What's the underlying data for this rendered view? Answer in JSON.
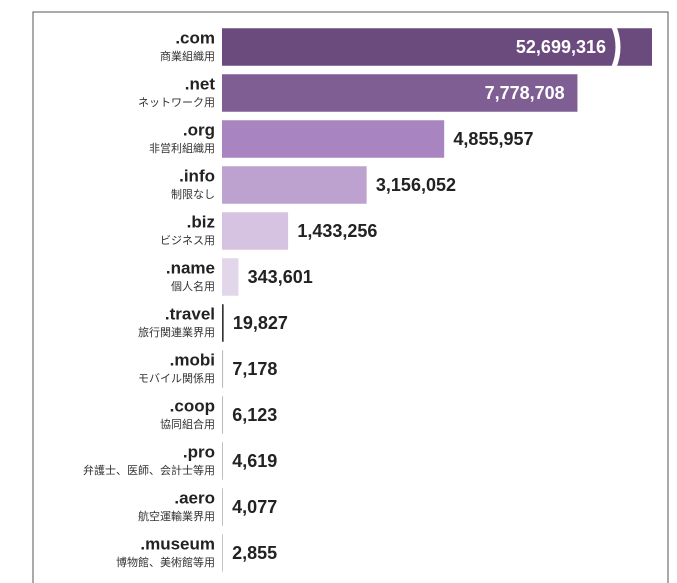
{
  "chart_data": {
    "type": "hbar",
    "categories": [
      ".com",
      ".net",
      ".org",
      ".info",
      ".biz",
      ".name",
      ".travel",
      ".mobi",
      ".coop",
      ".pro",
      ".aero",
      ".museum"
    ],
    "descriptions": [
      "商業組織用",
      "ネットワーク用",
      "非営利組織用",
      "制限なし",
      "ビジネス用",
      "個人名用",
      "旅行関連業界用",
      "モバイル関係用",
      "協同組合用",
      "弁護士、医師、会計士等用",
      "航空運輸業界用",
      "博物館、美術館等用"
    ],
    "values": [
      52699316,
      7778708,
      4855957,
      3156052,
      1433256,
      343601,
      19827,
      7178,
      6123,
      4619,
      4077,
      2855
    ],
    "value_labels": [
      "52,699,316",
      "7,778,708",
      "4,855,957",
      "3,156,052",
      "1,433,256",
      "343,601",
      "19,827",
      "7,178",
      "6,123",
      "4,619",
      "4,077",
      "2,855"
    ],
    "colors": [
      "#6b4a7e",
      "#7f5e94",
      "#a884c0",
      "#bda2cf",
      "#d5c3e1",
      "#e2d7ea",
      "#333333",
      "#bbbbbb",
      "#bbbbbb",
      "#bbbbbb",
      "#bbbbbb",
      "#bbbbbb"
    ],
    "xlim": [
      0,
      9430000
    ]
  }
}
